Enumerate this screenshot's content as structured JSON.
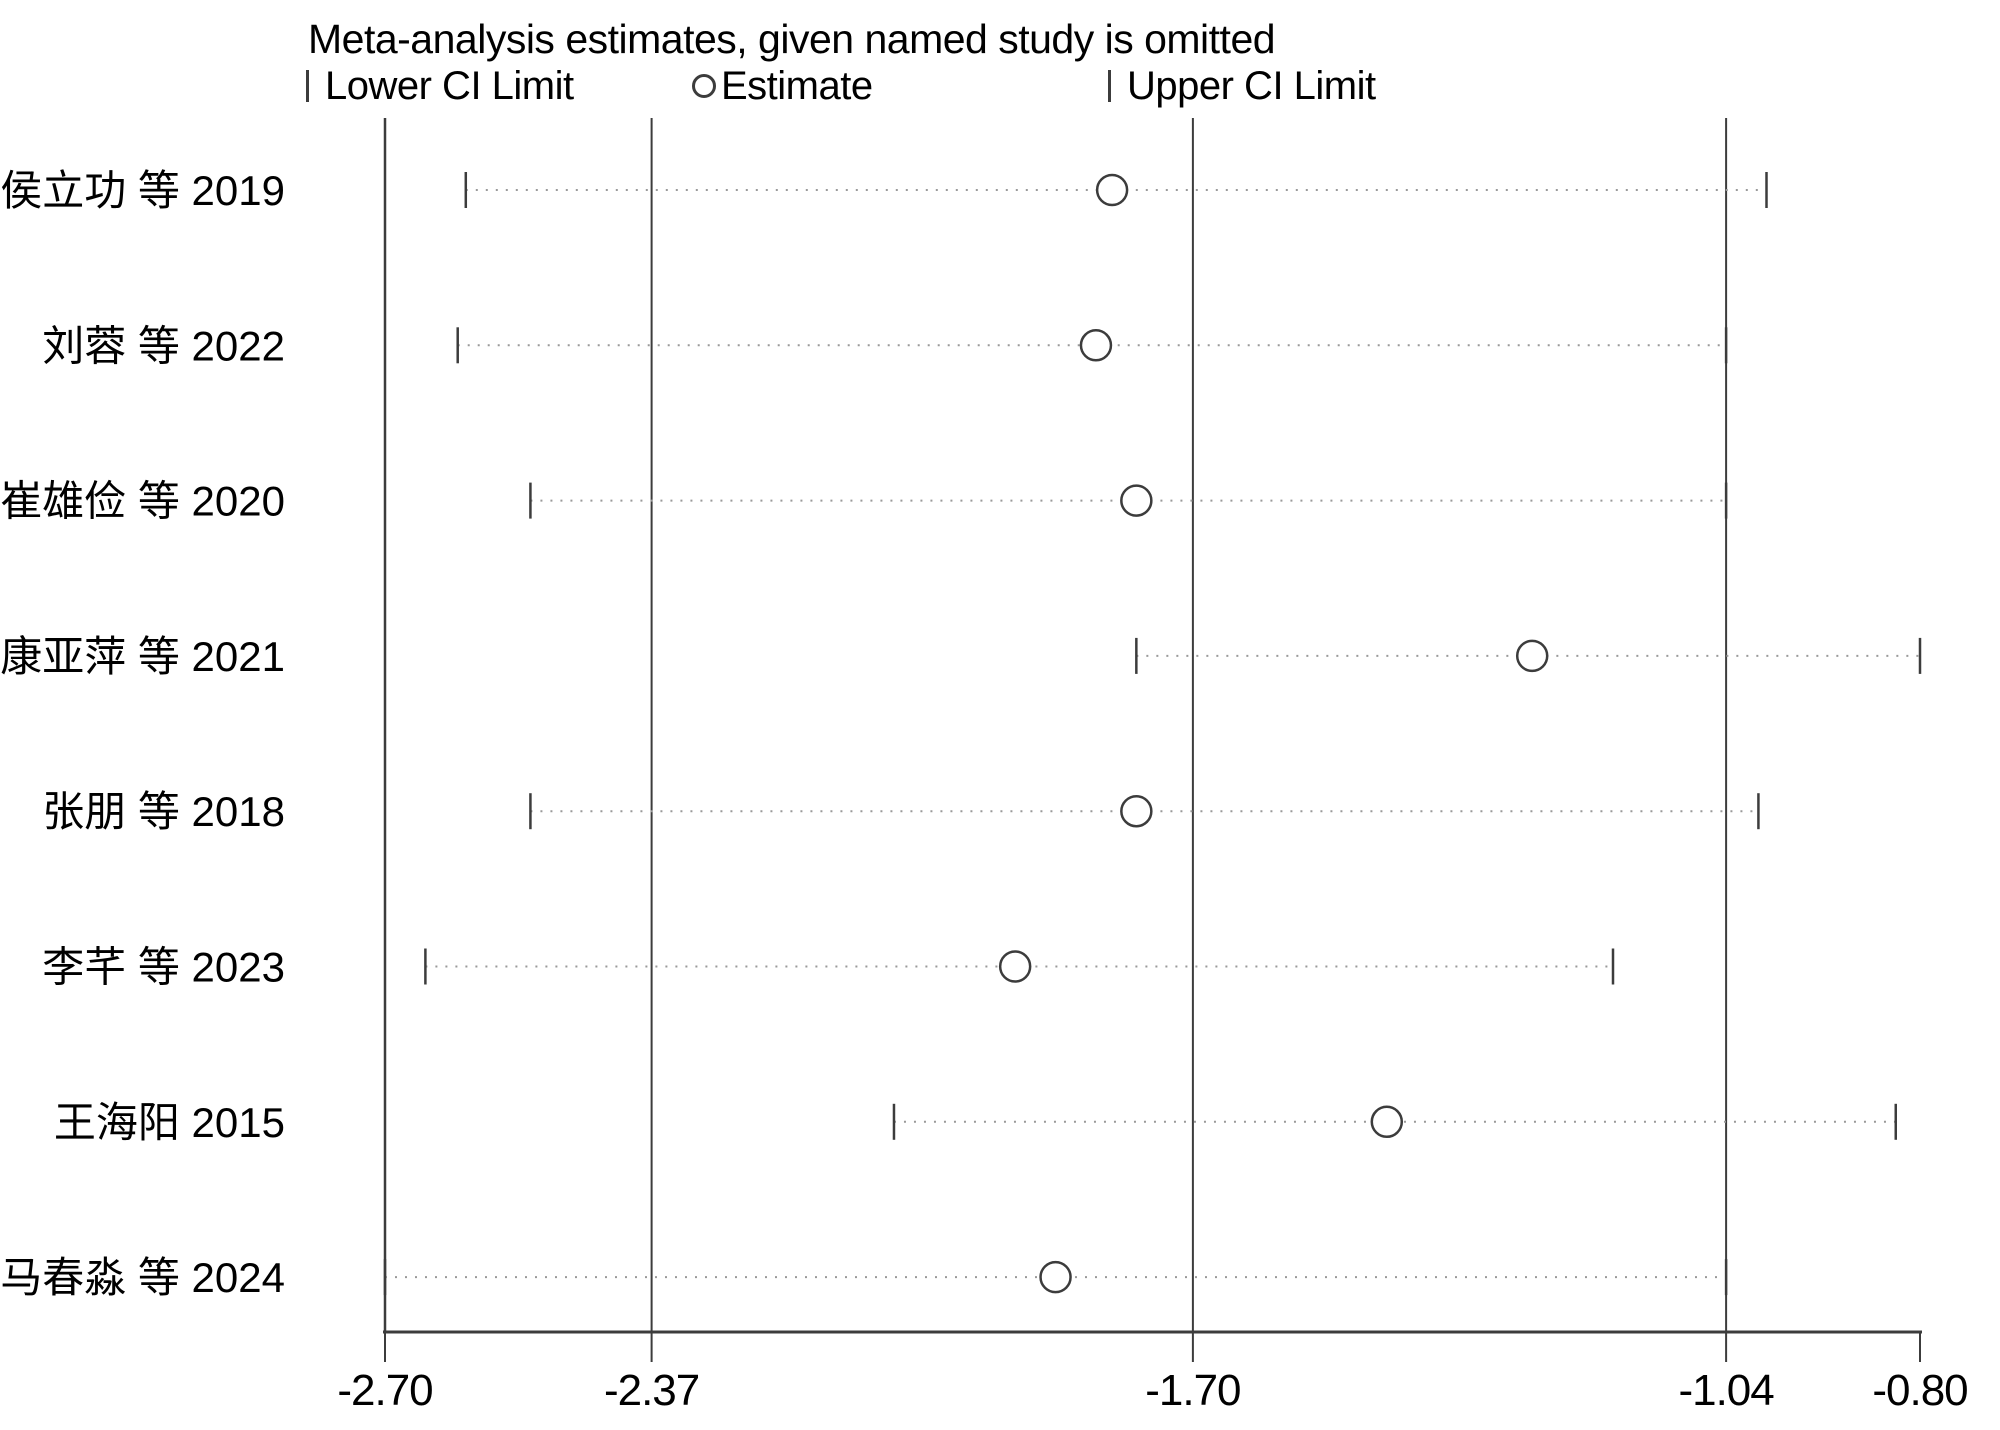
{
  "title": "Meta-analysis estimates, given named study is omitted",
  "legend": {
    "lower_label": "Lower CI Limit",
    "estimate_label": "Estimate",
    "upper_label": "Upper CI Limit"
  },
  "chart_data": {
    "type": "scatter",
    "subtype": "leave-one-out sensitivity (metaninf) forest plot",
    "title": "Meta-analysis estimates, given named study is omitted",
    "xlabel": "",
    "ylabel": "",
    "xlim": [
      -2.7,
      -0.8
    ],
    "xticks": [
      -2.7,
      -2.37,
      -1.7,
      -1.04,
      -0.8
    ],
    "xtick_labels": [
      "-2.70",
      "-2.37",
      "-1.70",
      "-1.04",
      "-0.80"
    ],
    "grid": false,
    "legend_position": "top",
    "reference_lines": {
      "overall_lower_ci": -2.37,
      "overall_estimate": -1.7,
      "overall_upper_ci": -1.04
    },
    "series": [
      {
        "name": "Lower CI Limit",
        "marker": "tick"
      },
      {
        "name": "Estimate",
        "marker": "circle"
      },
      {
        "name": "Upper CI Limit",
        "marker": "tick"
      }
    ],
    "studies": [
      {
        "label": "侯立功 等 2019",
        "lower": -2.6,
        "estimate": -1.8,
        "upper": -0.99
      },
      {
        "label": "刘蓉 等 2022",
        "lower": -2.61,
        "estimate": -1.82,
        "upper": -1.04
      },
      {
        "label": "崔雄俭 等 2020",
        "lower": -2.52,
        "estimate": -1.77,
        "upper": -1.04
      },
      {
        "label": "康亚萍 等 2021",
        "lower": -1.77,
        "estimate": -1.28,
        "upper": -0.8
      },
      {
        "label": "张朋 等 2018",
        "lower": -2.52,
        "estimate": -1.77,
        "upper": -1.0
      },
      {
        "label": "李芊 等 2023",
        "lower": -2.65,
        "estimate": -1.92,
        "upper": -1.18
      },
      {
        "label": "王海阳 2015",
        "lower": -2.07,
        "estimate": -1.46,
        "upper": -0.83
      },
      {
        "label": "马春淼 等 2024",
        "lower": -2.7,
        "estimate": -1.87,
        "upper": -1.04
      }
    ],
    "colors": {
      "line": "#3c3c3c",
      "dotted_line": "#999999",
      "marker_fill": "#ffffff",
      "text": "#000000"
    }
  }
}
